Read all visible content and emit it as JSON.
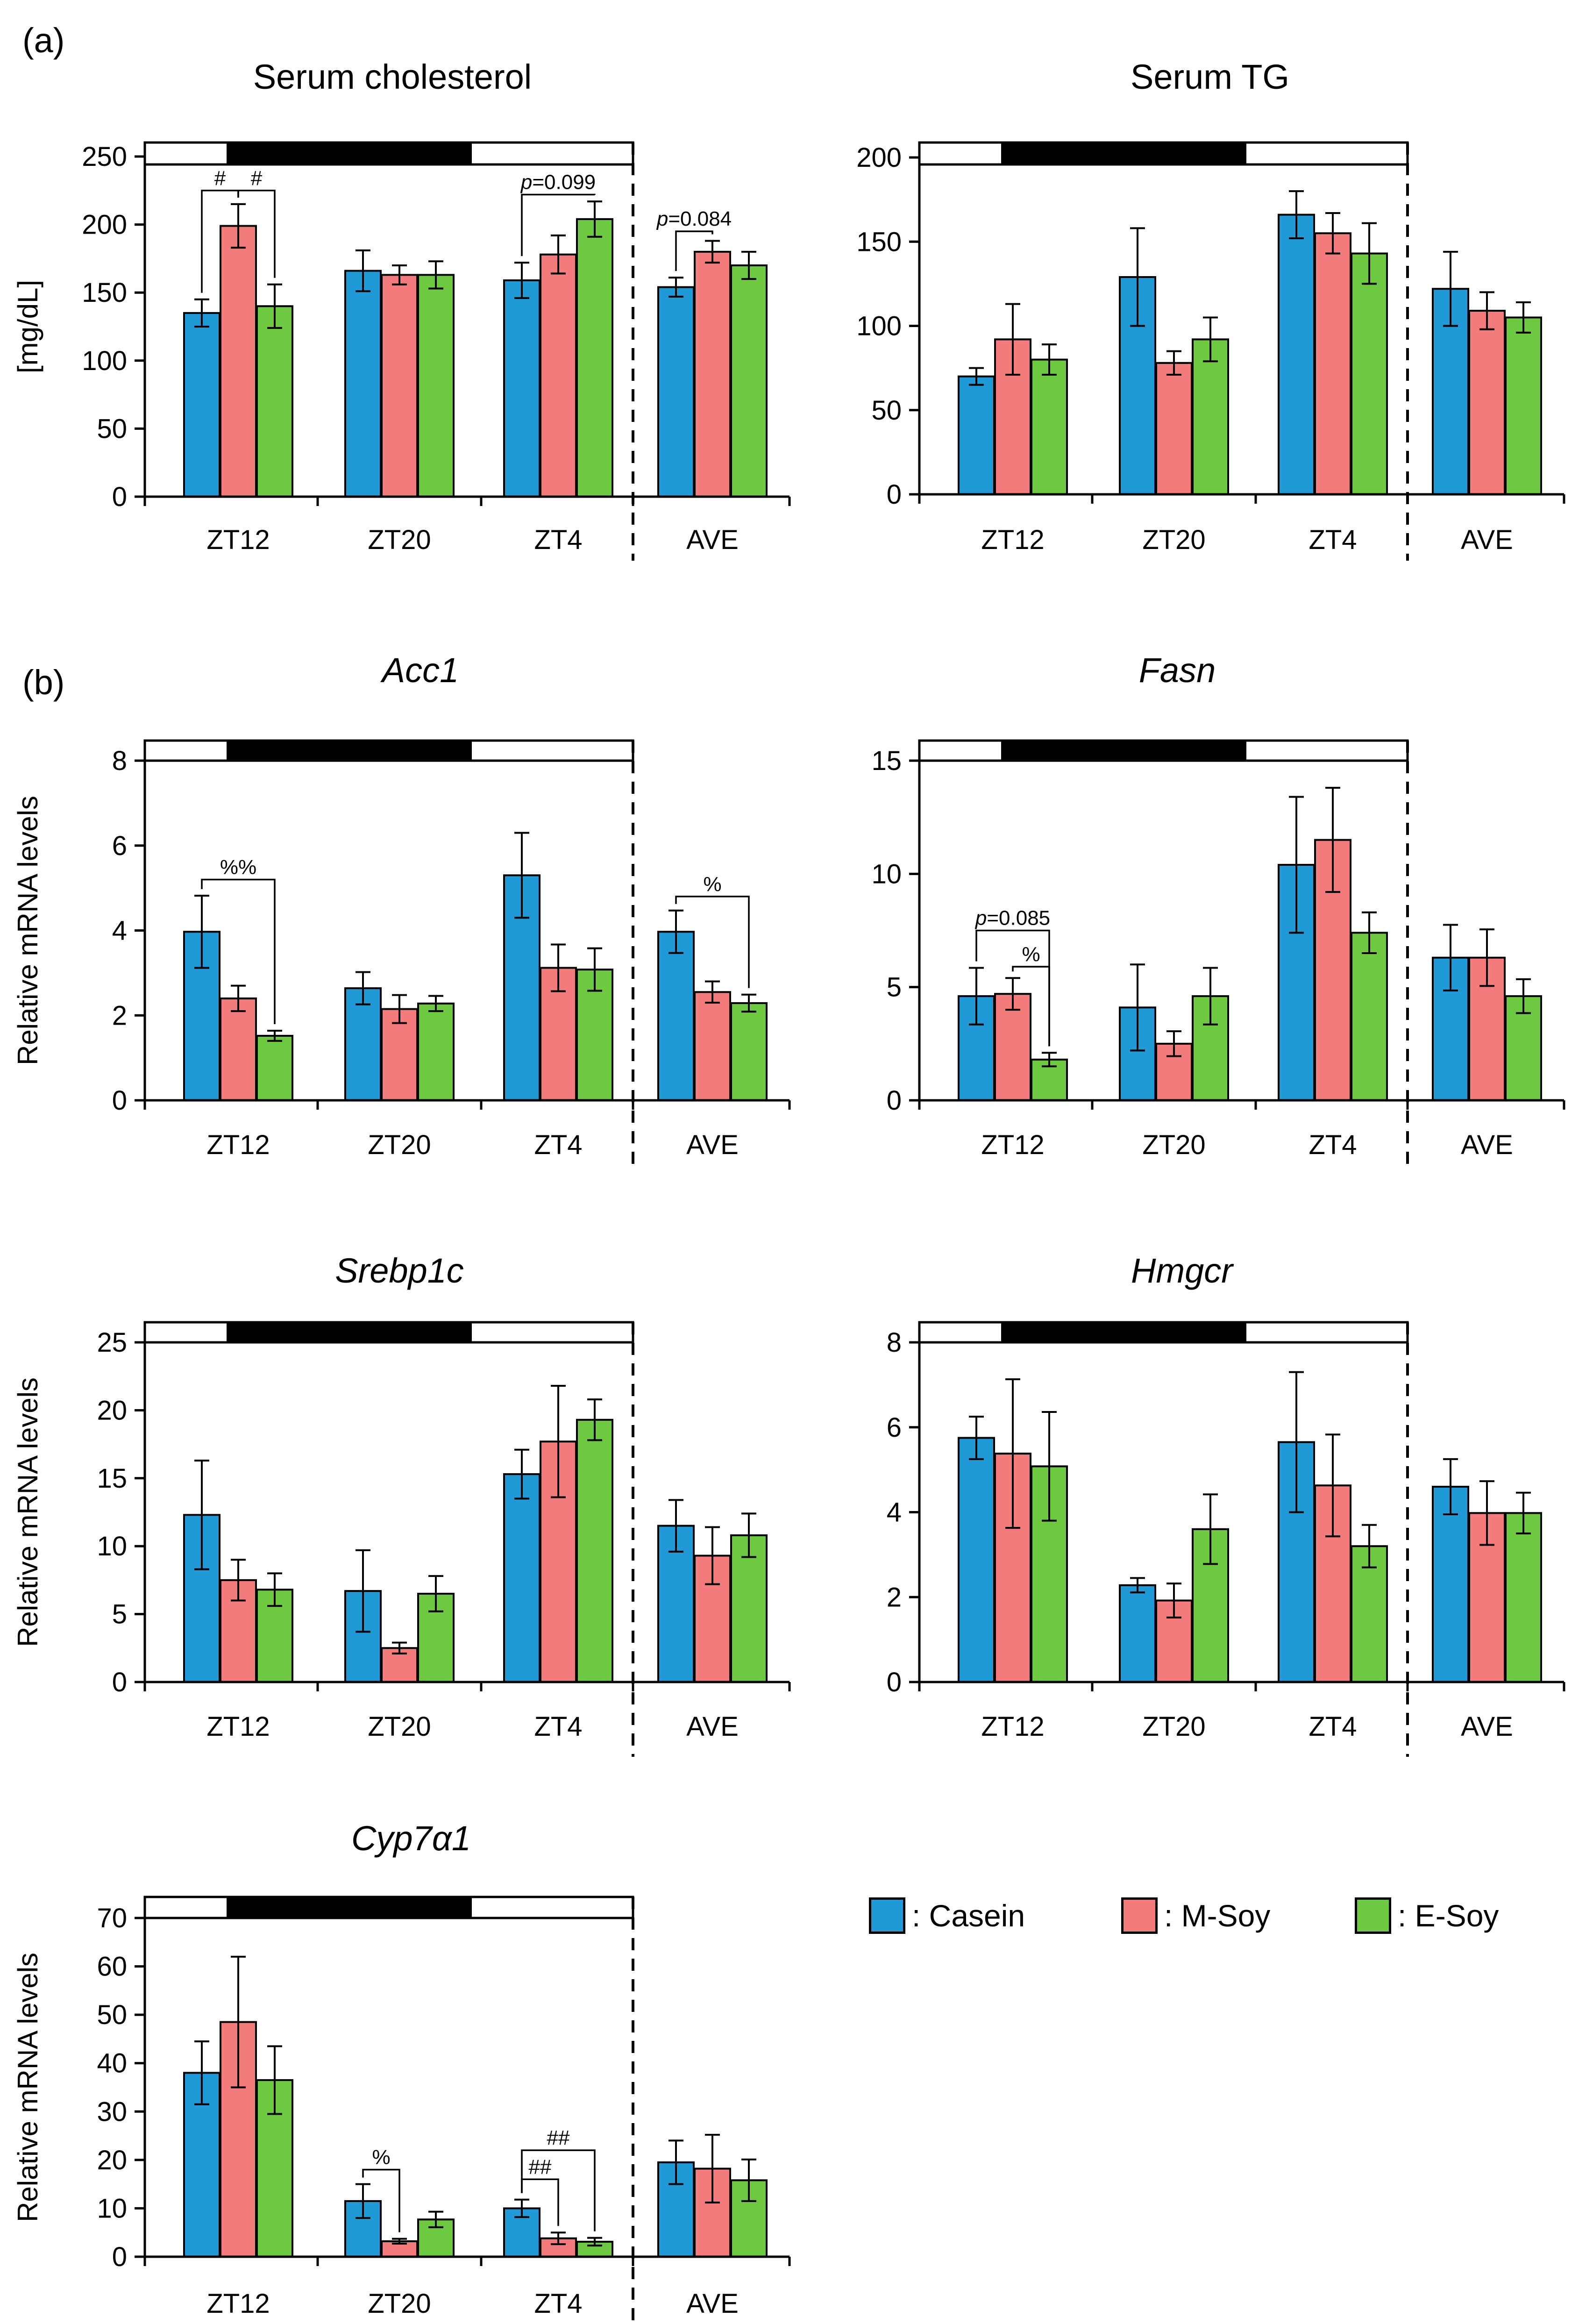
{
  "figure": {
    "panel_labels": [
      "(a)",
      "(b)"
    ]
  },
  "colors": {
    "Casein": "#1f9ad6",
    "M-Soy": "#f47b7b",
    "E-Soy": "#6dc93f",
    "axis": "#000000"
  },
  "legend": [
    {
      "name": "Casein",
      "label": ": Casein"
    },
    {
      "name": "M-Soy",
      "label": ": M-Soy"
    },
    {
      "name": "E-Soy",
      "label": ": E-Soy"
    }
  ],
  "chart_data": [
    {
      "id": "serum-cholesterol",
      "type": "bar",
      "title": "Serum cholesterol",
      "title_italic": false,
      "ylabel": "[mg/dL]",
      "ylim": [
        0,
        250
      ],
      "yticks": [
        0,
        50,
        100,
        150,
        200,
        250
      ],
      "categories": [
        "ZT12",
        "ZT20",
        "ZT4",
        "AVE"
      ],
      "series": [
        {
          "name": "Casein",
          "values": [
            135,
            166,
            159,
            154
          ],
          "errors": [
            10,
            15,
            13,
            7
          ]
        },
        {
          "name": "M-Soy",
          "values": [
            199,
            163,
            178,
            180
          ],
          "errors": [
            16,
            7,
            14,
            8
          ]
        },
        {
          "name": "E-Soy",
          "values": [
            140,
            163,
            204,
            170
          ],
          "errors": [
            16,
            10,
            13,
            10
          ]
        }
      ],
      "annotations": [
        {
          "text": "#",
          "group": 0,
          "from": 0,
          "to": 1,
          "y": 225
        },
        {
          "text": "#",
          "group": 0,
          "from": 1,
          "to": 2,
          "y": 225
        },
        {
          "text": "p=0.099",
          "group": 2,
          "from": 0,
          "to": 2,
          "y": 222
        },
        {
          "text": "p=0.084",
          "group": 3,
          "from": 0,
          "to": 1,
          "y": 195
        }
      ]
    },
    {
      "id": "serum-tg",
      "type": "bar",
      "title": "Serum TG",
      "title_italic": false,
      "ylabel": "",
      "ylim": [
        0,
        200
      ],
      "yticks": [
        0,
        50,
        100,
        150,
        200
      ],
      "categories": [
        "ZT12",
        "ZT20",
        "ZT4",
        "AVE"
      ],
      "series": [
        {
          "name": "Casein",
          "values": [
            70,
            129,
            166,
            122
          ],
          "errors": [
            5,
            29,
            14,
            22
          ]
        },
        {
          "name": "M-Soy",
          "values": [
            92,
            78,
            155,
            109
          ],
          "errors": [
            21,
            7,
            12,
            11
          ]
        },
        {
          "name": "E-Soy",
          "values": [
            80,
            92,
            143,
            105
          ],
          "errors": [
            9,
            13,
            18,
            9
          ]
        }
      ],
      "annotations": []
    },
    {
      "id": "acc1",
      "type": "bar",
      "title": "Acc1",
      "title_italic": true,
      "ylabel": "Relative mRNA levels",
      "ylim": [
        0,
        8
      ],
      "yticks": [
        0,
        2,
        4,
        6,
        8
      ],
      "categories": [
        "ZT12",
        "ZT20",
        "ZT4",
        "AVE"
      ],
      "series": [
        {
          "name": "Casein",
          "values": [
            3.97,
            2.64,
            5.3,
            3.97
          ],
          "errors": [
            0.85,
            0.38,
            1.0,
            0.5
          ]
        },
        {
          "name": "M-Soy",
          "values": [
            2.4,
            2.15,
            3.12,
            2.55
          ],
          "errors": [
            0.3,
            0.33,
            0.55,
            0.25
          ]
        },
        {
          "name": "E-Soy",
          "values": [
            1.52,
            2.28,
            3.08,
            2.29
          ],
          "errors": [
            0.12,
            0.18,
            0.5,
            0.2
          ]
        }
      ],
      "annotations": [
        {
          "text": "%%",
          "group": 0,
          "from": 0,
          "to": 2,
          "y": 5.2
        },
        {
          "text": "%",
          "group": 3,
          "from": 0,
          "to": 2,
          "y": 4.8
        }
      ]
    },
    {
      "id": "fasn",
      "type": "bar",
      "title": "Fasn",
      "title_italic": true,
      "ylabel": "",
      "ylim": [
        0,
        15
      ],
      "yticks": [
        0,
        5,
        10,
        15
      ],
      "categories": [
        "ZT12",
        "ZT20",
        "ZT4",
        "AVE"
      ],
      "series": [
        {
          "name": "Casein",
          "values": [
            4.6,
            4.1,
            10.4,
            6.3
          ],
          "errors": [
            1.25,
            1.9,
            3.0,
            1.45
          ]
        },
        {
          "name": "M-Soy",
          "values": [
            4.7,
            2.5,
            11.5,
            6.3
          ],
          "errors": [
            0.7,
            0.55,
            2.3,
            1.25
          ]
        },
        {
          "name": "E-Soy",
          "values": [
            1.8,
            4.6,
            7.4,
            4.6
          ],
          "errors": [
            0.3,
            1.25,
            0.9,
            0.75
          ]
        }
      ],
      "annotations": [
        {
          "text": "p=0.085",
          "group": 0,
          "from": 0,
          "to": 2,
          "y": 7.5
        },
        {
          "text": "%",
          "group": 0,
          "from": 1,
          "to": 2,
          "y": 5.9
        }
      ]
    },
    {
      "id": "srebp1c",
      "type": "bar",
      "title": "Srebp1c",
      "title_italic": true,
      "ylabel": "Relative mRNA levels",
      "ylim": [
        0,
        25
      ],
      "yticks": [
        0,
        5,
        10,
        15,
        20,
        25
      ],
      "categories": [
        "ZT12",
        "ZT20",
        "ZT4",
        "AVE"
      ],
      "series": [
        {
          "name": "Casein",
          "values": [
            12.3,
            6.7,
            15.3,
            11.5
          ],
          "errors": [
            4.0,
            3.0,
            1.8,
            1.9
          ]
        },
        {
          "name": "M-Soy",
          "values": [
            7.5,
            2.5,
            17.7,
            9.3
          ],
          "errors": [
            1.5,
            0.4,
            4.1,
            2.1
          ]
        },
        {
          "name": "E-Soy",
          "values": [
            6.8,
            6.5,
            19.3,
            10.8
          ],
          "errors": [
            1.2,
            1.3,
            1.5,
            1.6
          ]
        }
      ],
      "annotations": []
    },
    {
      "id": "hmgcr",
      "type": "bar",
      "title": "Hmgcr",
      "title_italic": true,
      "ylabel": "",
      "ylim": [
        0,
        8
      ],
      "yticks": [
        0,
        2,
        4,
        6,
        8
      ],
      "categories": [
        "ZT12",
        "ZT20",
        "ZT4",
        "AVE"
      ],
      "series": [
        {
          "name": "Casein",
          "values": [
            5.75,
            2.28,
            5.65,
            4.6
          ],
          "errors": [
            0.5,
            0.17,
            1.65,
            0.65
          ]
        },
        {
          "name": "M-Soy",
          "values": [
            5.38,
            1.92,
            4.63,
            3.98
          ],
          "errors": [
            1.75,
            0.4,
            1.2,
            0.75
          ]
        },
        {
          "name": "E-Soy",
          "values": [
            5.08,
            3.6,
            3.2,
            3.98
          ],
          "errors": [
            1.28,
            0.82,
            0.5,
            0.48
          ]
        }
      ],
      "annotations": []
    },
    {
      "id": "cyp7a1",
      "type": "bar",
      "title": "Cyp7α1",
      "title_italic": true,
      "ylabel": "Relative mRNA levels",
      "ylim": [
        0,
        70
      ],
      "yticks": [
        0,
        10,
        20,
        30,
        40,
        50,
        60,
        70
      ],
      "categories": [
        "ZT12",
        "ZT20",
        "ZT4",
        "AVE"
      ],
      "series": [
        {
          "name": "Casein",
          "values": [
            38,
            11.5,
            10,
            19.5
          ],
          "errors": [
            6.5,
            3.5,
            1.8,
            4.5
          ]
        },
        {
          "name": "M-Soy",
          "values": [
            48.5,
            3.2,
            3.8,
            18.2
          ],
          "errors": [
            13.5,
            0.5,
            1.2,
            7.0
          ]
        },
        {
          "name": "E-Soy",
          "values": [
            36.5,
            7.7,
            3.1,
            15.8
          ],
          "errors": [
            7.0,
            1.6,
            0.8,
            4.3
          ]
        }
      ],
      "annotations": [
        {
          "text": "%",
          "group": 1,
          "from": 0,
          "to": 1,
          "y": 18
        },
        {
          "text": "##",
          "group": 2,
          "from": 0,
          "to": 1,
          "y": 16
        },
        {
          "text": "##",
          "group": 2,
          "from": 0,
          "to": 2,
          "y": 22
        }
      ]
    }
  ]
}
